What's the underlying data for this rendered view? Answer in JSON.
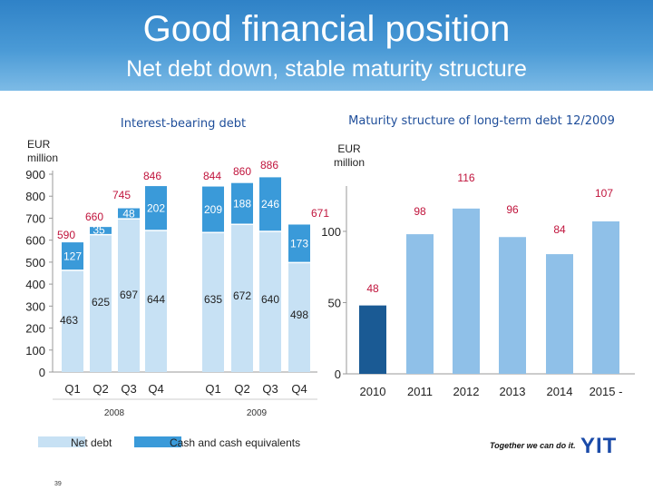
{
  "header": {
    "title": "Good financial position",
    "subtitle": "Net debt down, stable maturity structure"
  },
  "chart_data": [
    {
      "type": "bar",
      "stacked": true,
      "title": "Interest-bearing debt",
      "ylabel": "EUR million",
      "ylim": [
        0,
        900
      ],
      "yticks": [
        0,
        100,
        200,
        300,
        400,
        500,
        600,
        700,
        800,
        900
      ],
      "categories": [
        "Q1",
        "Q2",
        "Q3",
        "Q4",
        "Q1",
        "Q2",
        "Q3",
        "Q4"
      ],
      "groups": [
        {
          "label": "2008",
          "categories": [
            "Q1",
            "Q2",
            "Q3",
            "Q4"
          ]
        },
        {
          "label": "2009",
          "categories": [
            "Q1",
            "Q2",
            "Q3",
            "Q4"
          ]
        }
      ],
      "series": [
        {
          "name": "Net debt",
          "values": [
            463,
            625,
            697,
            644,
            635,
            672,
            640,
            498
          ]
        },
        {
          "name": "Cash and cash equivalents",
          "values": [
            127,
            35,
            48,
            202,
            209,
            188,
            246,
            173
          ]
        }
      ],
      "totals": [
        590,
        660,
        745,
        846,
        844,
        860,
        886,
        671
      ],
      "grid": false
    },
    {
      "type": "bar",
      "title": "Maturity structure of long-term debt 12/2009",
      "ylabel": "EUR million",
      "ylim": [
        0,
        135
      ],
      "yticks": [
        0,
        50,
        100
      ],
      "categories": [
        "2010",
        "2011",
        "2012",
        "2013",
        "2014",
        "2015 -"
      ],
      "values": [
        48,
        98,
        116,
        96,
        84,
        107
      ],
      "grid": false
    }
  ],
  "legend": {
    "net_debt": "Net debt",
    "cash": "Cash and cash equivalents"
  },
  "colors": {
    "net_debt": "#c7e1f4",
    "cash": "#3a9ad9",
    "highlight": "#1a5a94",
    "bar": "#8fc0e8",
    "axis": "#999999",
    "total_label": "#c0143c"
  },
  "branding": {
    "tagline": "Together we can do it.",
    "logo": "YIT"
  },
  "page_number": "39"
}
